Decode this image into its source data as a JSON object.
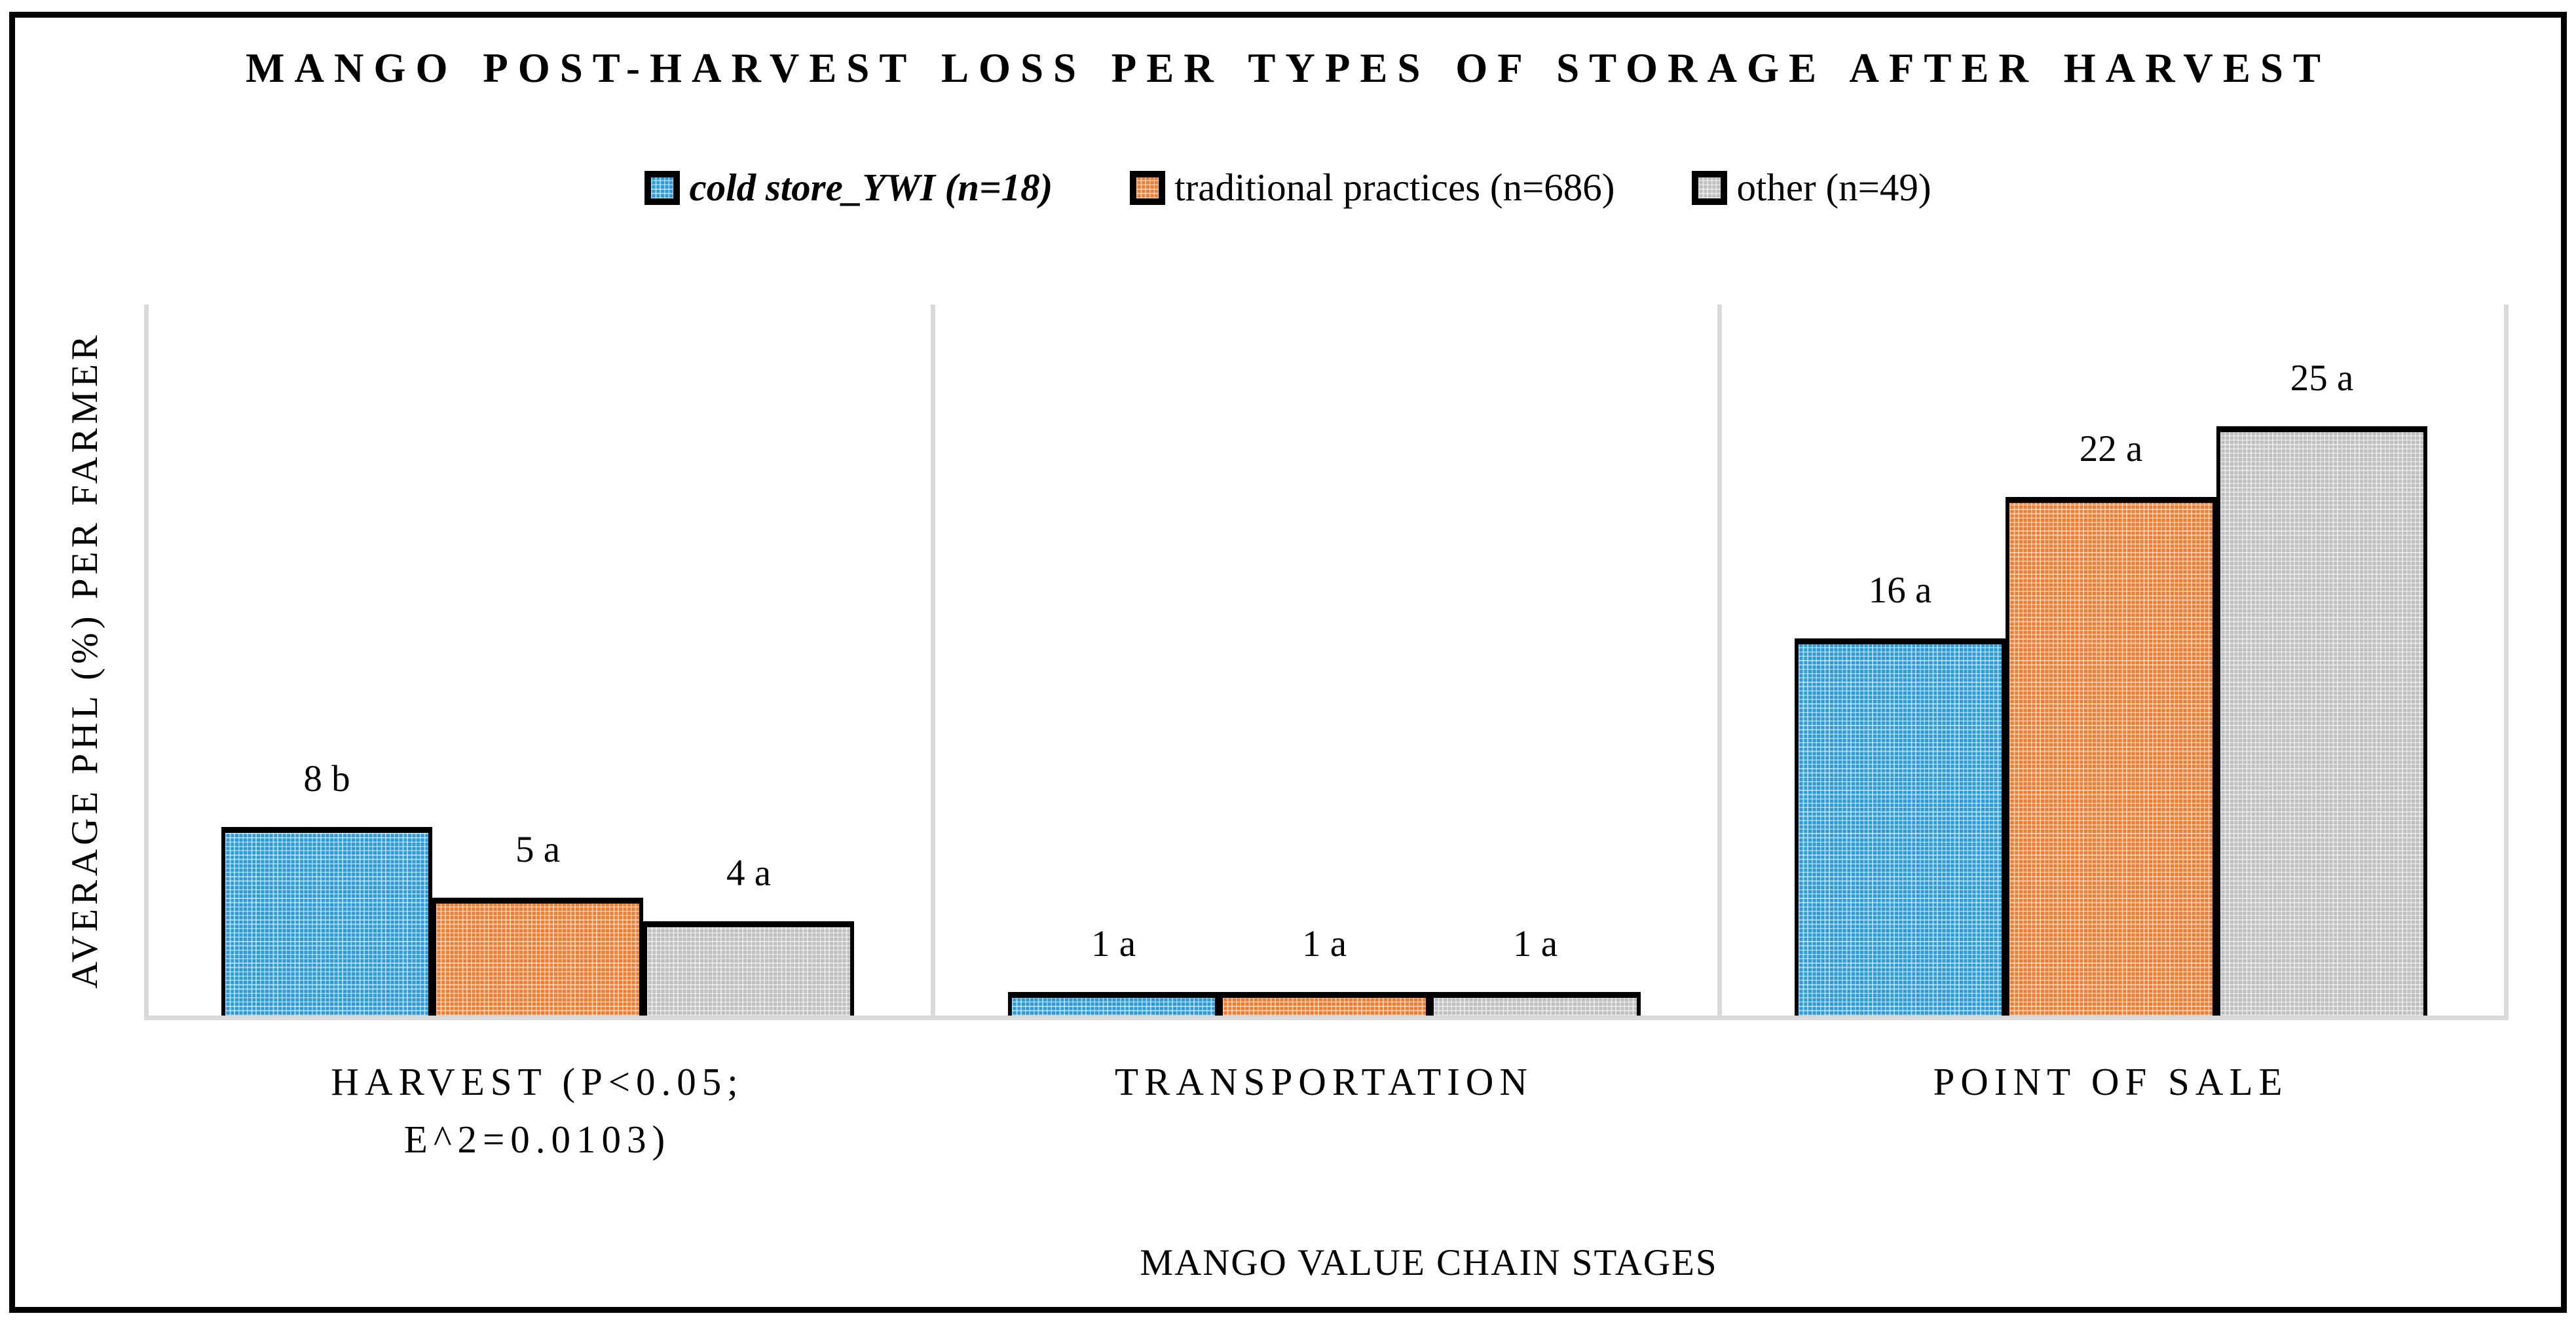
{
  "figure": {
    "title": "MANGO POST-HARVEST LOSS PER TYPES OF STORAGE AFTER HARVEST",
    "y_axis_title": "AVERAGE PHL (%) PER FARMER",
    "x_axis_title": "MANGO VALUE CHAIN STAGES"
  },
  "chart_data": {
    "type": "bar",
    "title": "MANGO POST-HARVEST LOSS PER TYPES OF STORAGE AFTER HARVEST",
    "xlabel": "MANGO VALUE CHAIN STAGES",
    "ylabel": "AVERAGE PHL (%) PER FARMER",
    "ylim": [
      0,
      30
    ],
    "grid": false,
    "y_axis_ticks_visible": false,
    "legend_position": "top",
    "axis_line_color": "#D9D9D9",
    "bar_border_color": "#000000",
    "categories": [
      "HARVEST (P<0.05; E^2=0.0103)",
      "TRANSPORTATION",
      "POINT OF SALE"
    ],
    "category_display_lines": [
      [
        "HARVEST (P<0.05;",
        "E^2=0.0103)"
      ],
      [
        "TRANSPORTATION"
      ],
      [
        "POINT OF SALE"
      ]
    ],
    "series": [
      {
        "name": "cold store_YWI (n=18)",
        "color": "#2D9BD8",
        "values": [
          8,
          1,
          16
        ],
        "bar_labels": [
          "8 b",
          "1 a",
          "16 a"
        ]
      },
      {
        "name": "traditional practices (n=686)",
        "color": "#ED7D31",
        "values": [
          5,
          1,
          22
        ],
        "bar_labels": [
          "5 a",
          "1 a",
          "22 a"
        ]
      },
      {
        "name": "other (n=49)",
        "color": "#BFBFBF",
        "values": [
          4,
          1,
          25
        ],
        "bar_labels": [
          "4 a",
          "1 a",
          "25 a"
        ]
      }
    ]
  }
}
